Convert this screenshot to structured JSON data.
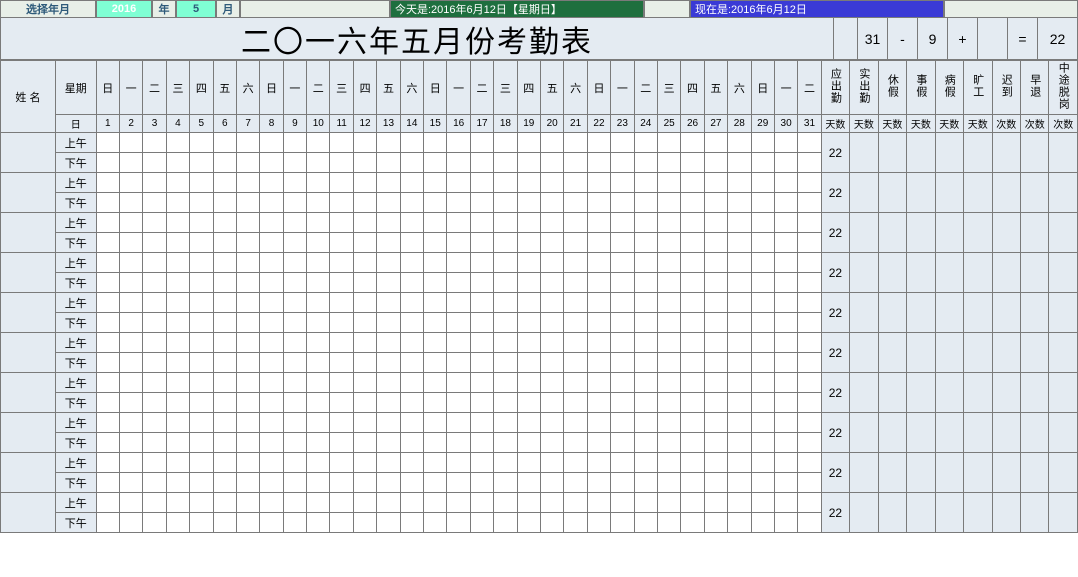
{
  "topbar": {
    "select_label": "选择年月",
    "year": "2016",
    "y": "年",
    "month": "5",
    "m": "月",
    "today_label": "今天是:2016年6月12日【星期日】",
    "now_label": "现在是:2016年6月12日"
  },
  "title": "二〇一六年五月份考勤表",
  "summary": {
    "a": "31",
    "op1": "-",
    "b": "9",
    "op2": "+",
    "c": "",
    "eq": "=",
    "d": "22"
  },
  "weekdays_row": [
    "日",
    "一",
    "二",
    "三",
    "四",
    "五",
    "六",
    "日",
    "一",
    "二",
    "三",
    "四",
    "五",
    "六",
    "日",
    "一",
    "二",
    "三",
    "四",
    "五",
    "六",
    "日",
    "一",
    "二",
    "三",
    "四",
    "五",
    "六",
    "日",
    "一",
    "二"
  ],
  "days_row": [
    "1",
    "2",
    "3",
    "4",
    "5",
    "6",
    "7",
    "8",
    "9",
    "10",
    "11",
    "12",
    "13",
    "14",
    "15",
    "16",
    "17",
    "18",
    "19",
    "20",
    "21",
    "22",
    "23",
    "24",
    "25",
    "26",
    "27",
    "28",
    "29",
    "30",
    "31"
  ],
  "headers": {
    "name": "姓 名",
    "week": "星期",
    "day": "日",
    "stats": [
      "应出勤",
      "实出勤",
      "休假",
      "事假",
      "病假",
      "旷工",
      "迟到",
      "早退",
      "中途脱岗"
    ],
    "units": [
      "天数",
      "天数",
      "天数",
      "天数",
      "天数",
      "天数",
      "次数",
      "次数",
      "次数"
    ]
  },
  "periods": {
    "am": "上午",
    "pm": "下午"
  },
  "row_count": 10,
  "attendance_value": "22"
}
